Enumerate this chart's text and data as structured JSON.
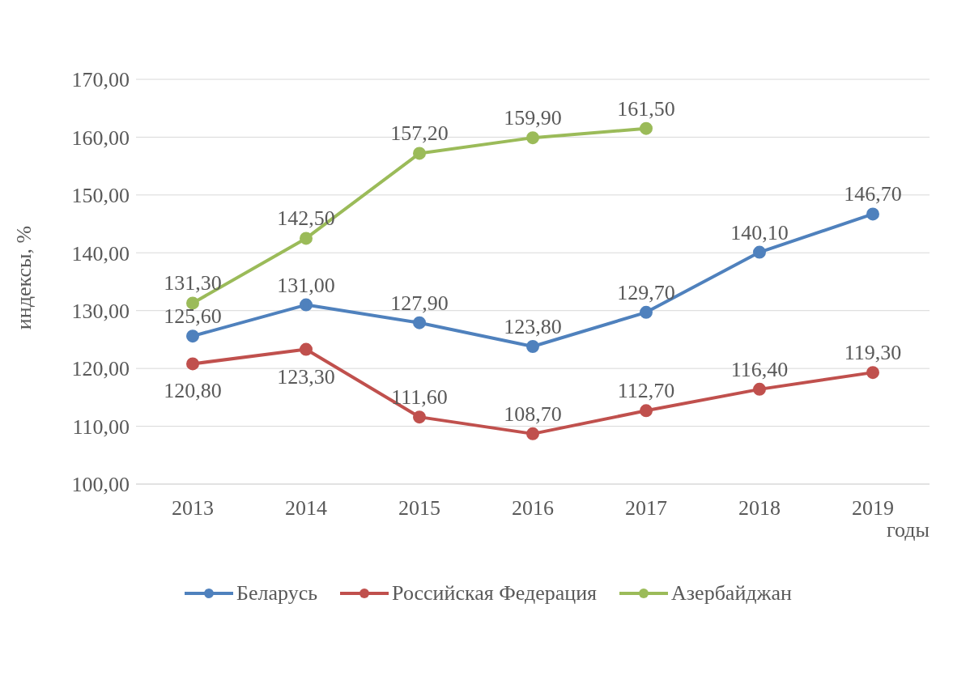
{
  "chart_data": {
    "type": "line",
    "xlabel": "годы",
    "ylabel": "индексы, %",
    "categories": [
      "2013",
      "2014",
      "2015",
      "2016",
      "2017",
      "2018",
      "2019"
    ],
    "series": [
      {
        "name": "Беларусь",
        "color": "#4f81bd",
        "values": [
          125.6,
          131.0,
          127.9,
          123.8,
          129.7,
          140.1,
          146.7
        ],
        "value_labels": [
          "125,60",
          "131,00",
          "127,90",
          "123,80",
          "129,70",
          "140,10",
          "146,70"
        ]
      },
      {
        "name": "Российская Федерация",
        "color": "#c0504d",
        "values": [
          120.8,
          123.3,
          111.6,
          108.7,
          112.7,
          116.4,
          119.3
        ],
        "value_labels": [
          "120,80",
          "123,30",
          "111,60",
          "108,70",
          "112,70",
          "116,40",
          "119,30"
        ]
      },
      {
        "name": "Азербайджан",
        "color": "#9bbb59",
        "values": [
          131.3,
          142.5,
          157.2,
          159.9,
          161.5,
          null,
          null
        ],
        "value_labels": [
          "131,30",
          "142,50",
          "157,20",
          "159,90",
          "161,50",
          null,
          null
        ]
      }
    ],
    "ylim": [
      100,
      170
    ],
    "yticks": [
      {
        "value": 100,
        "label": "100,00"
      },
      {
        "value": 110,
        "label": "110,00"
      },
      {
        "value": 120,
        "label": "120,00"
      },
      {
        "value": 130,
        "label": "130,00"
      },
      {
        "value": 140,
        "label": "140,00"
      },
      {
        "value": 150,
        "label": "150,00"
      },
      {
        "value": 160,
        "label": "160,00"
      },
      {
        "value": 170,
        "label": "170,00"
      }
    ],
    "grid": "y",
    "legend": "bottom",
    "marker": "circle",
    "line_style": "solid"
  }
}
